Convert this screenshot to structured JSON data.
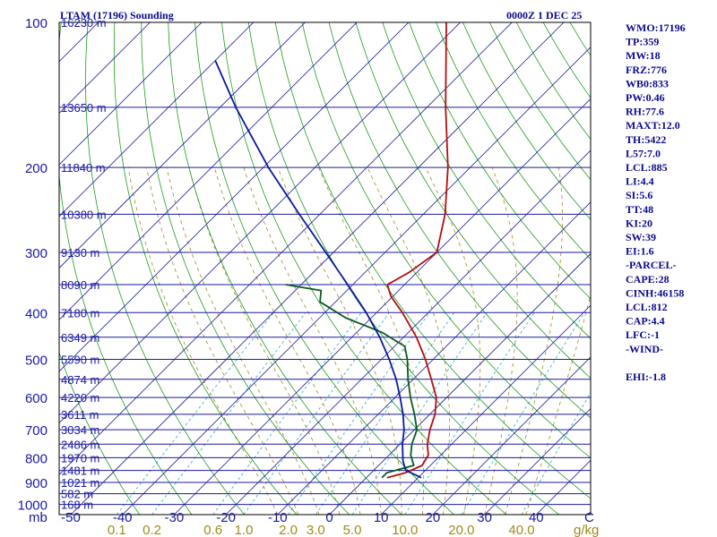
{
  "chart_data": {
    "type": "line",
    "title": "LTAM (17196) Sounding",
    "valid_time": "0000Z  1 DEC 25",
    "pressure_axis_label": "mb",
    "temperature_axis": {
      "unit": "C",
      "ticks": [
        -50,
        -40,
        -30,
        -20,
        -10,
        0,
        10,
        20,
        30,
        40
      ]
    },
    "pressure_ticks": [
      100,
      200,
      300,
      400,
      500,
      600,
      700,
      800,
      900,
      1000
    ],
    "mixing_ratio_axis": {
      "unit": "g/kg",
      "ticks": [
        "0.1",
        "0.2",
        "0.6",
        "1.0",
        "2.0",
        "3.0",
        "5.0",
        "10.0",
        "20.0",
        "40.0"
      ]
    },
    "standard_levels": [
      {
        "p": 100,
        "height": "16230 m"
      },
      {
        "p": 150,
        "height": "13650 m"
      },
      {
        "p": 200,
        "height": "11840 m"
      },
      {
        "p": 250,
        "height": "10380 m"
      },
      {
        "p": 300,
        "height": "9130 m"
      },
      {
        "p": 350,
        "height": "8090 m"
      },
      {
        "p": 400,
        "height": "7180 m"
      },
      {
        "p": 450,
        "height": "6349 m"
      },
      {
        "p": 500,
        "height": "5590 m"
      },
      {
        "p": 550,
        "height": "4874 m"
      },
      {
        "p": 600,
        "height": "4220 m"
      },
      {
        "p": 650,
        "height": "3611 m"
      },
      {
        "p": 700,
        "height": "3034 m"
      },
      {
        "p": 750,
        "height": "2486 m"
      },
      {
        "p": 800,
        "height": "1970 m"
      },
      {
        "p": 850,
        "height": "1481 m"
      },
      {
        "p": 900,
        "height": "1021 m"
      },
      {
        "p": 950,
        "height": "582 m"
      },
      {
        "p": 1000,
        "height": "168 m"
      }
    ],
    "series": [
      {
        "name": "Temperature",
        "color": "#b01010",
        "points": [
          {
            "p": 880,
            "t": 4.0
          },
          {
            "p": 860,
            "t": 6.6
          },
          {
            "p": 830,
            "t": 8.4
          },
          {
            "p": 790,
            "t": 7.6
          },
          {
            "p": 750,
            "t": 5.3
          },
          {
            "p": 700,
            "t": 3.0
          },
          {
            "p": 650,
            "t": 1.0
          },
          {
            "p": 600,
            "t": -2.0
          },
          {
            "p": 550,
            "t": -6.5
          },
          {
            "p": 500,
            "t": -11.5
          },
          {
            "p": 450,
            "t": -17.5
          },
          {
            "p": 400,
            "t": -25.0
          },
          {
            "p": 370,
            "t": -30.4
          },
          {
            "p": 350,
            "t": -33.3
          },
          {
            "p": 330,
            "t": -31.5
          },
          {
            "p": 300,
            "t": -30.0
          },
          {
            "p": 250,
            "t": -35.8
          },
          {
            "p": 200,
            "t": -44.3
          },
          {
            "p": 150,
            "t": -56.4
          },
          {
            "p": 100,
            "t": -72.7
          }
        ]
      },
      {
        "name": "Dewpoint",
        "color": "#0a5a1e",
        "points": [
          {
            "p": 880,
            "t": 3.0
          },
          {
            "p": 860,
            "t": 3.0
          },
          {
            "p": 830,
            "t": 6.8
          },
          {
            "p": 790,
            "t": 4.2
          },
          {
            "p": 750,
            "t": 2.3
          },
          {
            "p": 700,
            "t": 0.5
          },
          {
            "p": 650,
            "t": -3.0
          },
          {
            "p": 600,
            "t": -7.0
          },
          {
            "p": 550,
            "t": -11.0
          },
          {
            "p": 500,
            "t": -15.0
          },
          {
            "p": 470,
            "t": -18.0
          },
          {
            "p": 440,
            "t": -25.0
          },
          {
            "p": 410,
            "t": -35.0
          },
          {
            "p": 380,
            "t": -43.0
          },
          {
            "p": 360,
            "t": -45.0
          },
          {
            "p": 350,
            "t": -53.0
          }
        ]
      },
      {
        "name": "Parcel",
        "color": "#0a1a9c",
        "points": [
          {
            "p": 880,
            "t": 10.6
          },
          {
            "p": 850,
            "t": 6.2
          },
          {
            "p": 812,
            "t": 3.8
          },
          {
            "p": 750,
            "t": 0.5
          },
          {
            "p": 700,
            "t": -2.0
          },
          {
            "p": 650,
            "t": -5.2
          },
          {
            "p": 600,
            "t": -9.0
          },
          {
            "p": 550,
            "t": -13.3
          },
          {
            "p": 500,
            "t": -18.5
          },
          {
            "p": 450,
            "t": -24.6
          },
          {
            "p": 400,
            "t": -32.0
          },
          {
            "p": 350,
            "t": -41.0
          },
          {
            "p": 300,
            "t": -51.5
          },
          {
            "p": 250,
            "t": -64.0
          },
          {
            "p": 200,
            "t": -79.0
          },
          {
            "p": 150,
            "t": -97.0
          },
          {
            "p": 120,
            "t": -110.0
          }
        ]
      }
    ]
  },
  "indices": [
    "WMO:17196",
    "TP:359",
    "MW:18",
    "FRZ:776",
    "WB0:833",
    "PW:0.46",
    "RH:77.6",
    "MAXT:12.0",
    "TH:5422",
    "L57:7.0",
    "LCL:885",
    "LI:4.4",
    "SI:5.6",
    "TT:48",
    "KI:20",
    "SW:39",
    "EI:1.6",
    "-PARCEL-",
    "CAPE:28",
    "CINH:46158",
    "LCL:812",
    "CAP:4.4",
    "LFC:-1",
    "-WIND-",
    "",
    "EHI:-1.8"
  ],
  "colors": {
    "frame": "#000000",
    "isobar": "#1a1aa0",
    "isotherm": "#1a1aa0",
    "dry_adiabat": "#1e9c1e",
    "moist_adiabat": "#a08a18",
    "mixing_ratio": "#2aa8c8",
    "text": "#0a0a8c"
  }
}
